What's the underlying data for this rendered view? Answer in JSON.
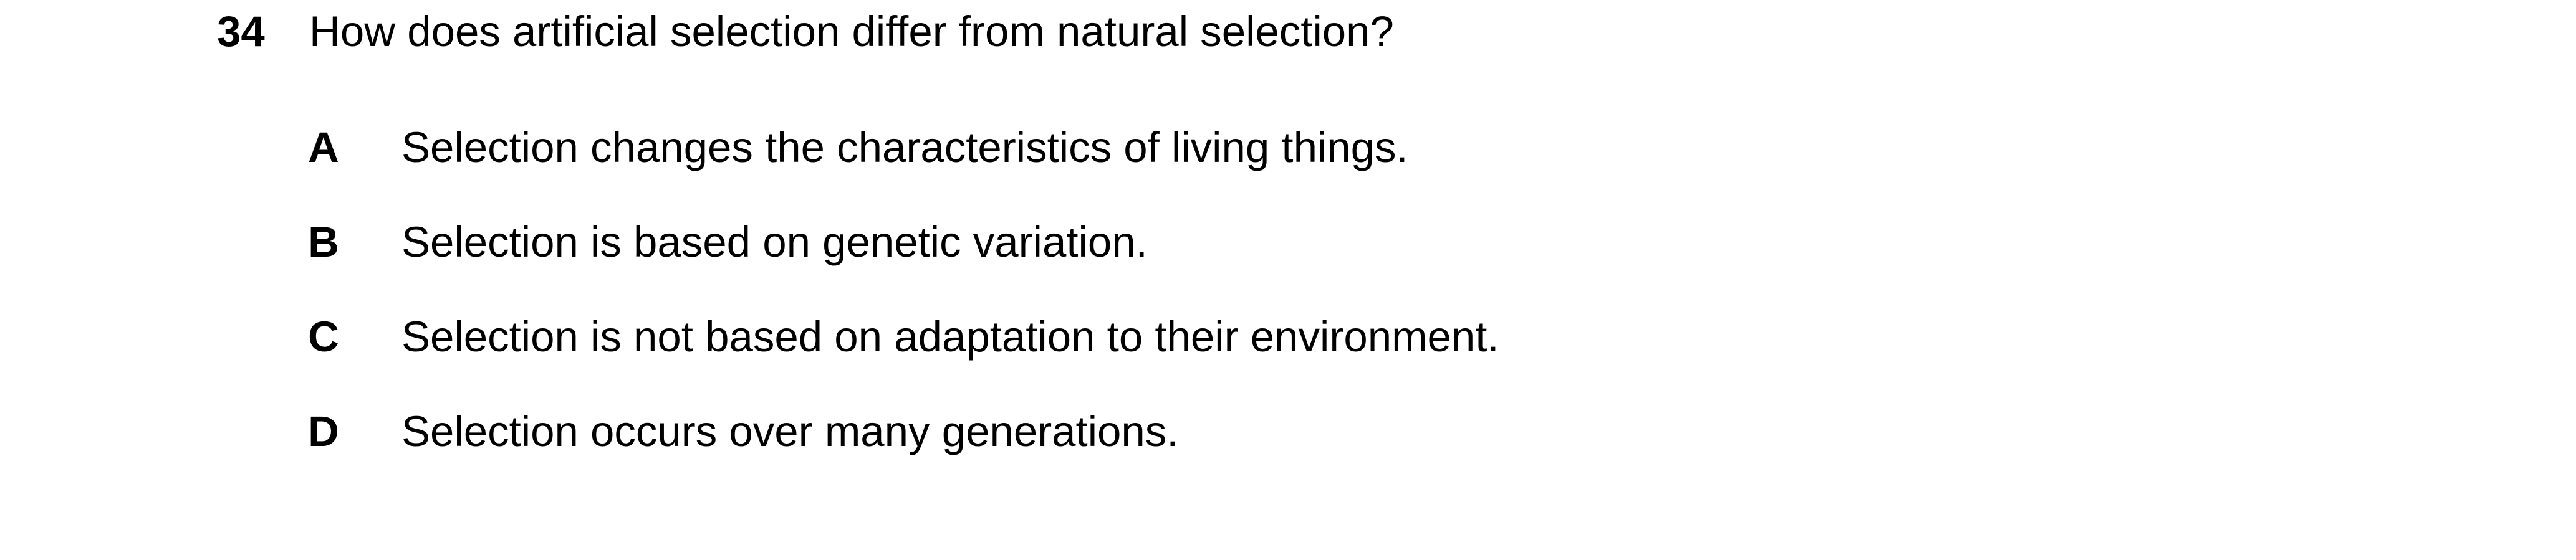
{
  "question": {
    "number": "34",
    "text": "How does artificial selection differ from natural selection?"
  },
  "options": [
    {
      "letter": "A",
      "text": "Selection changes the characteristics of living things."
    },
    {
      "letter": "B",
      "text": "Selection is based on genetic variation."
    },
    {
      "letter": "C",
      "text": "Selection is not based on adaptation to their environment."
    },
    {
      "letter": "D",
      "text": "Selection occurs over many generations."
    }
  ]
}
